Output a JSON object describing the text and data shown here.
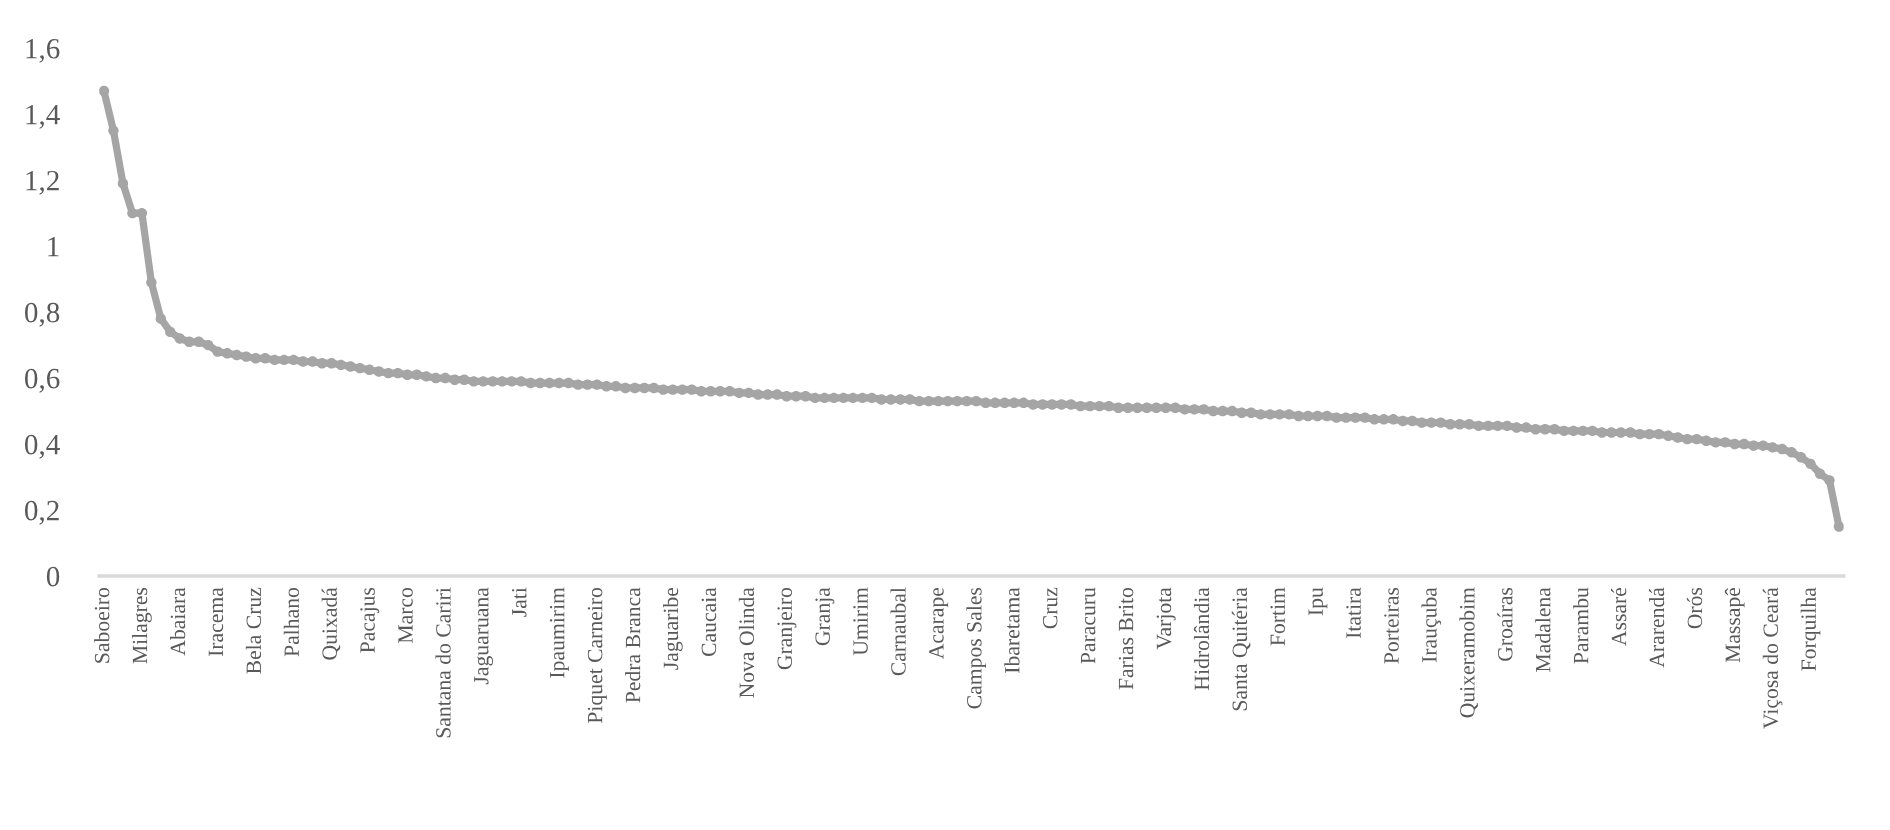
{
  "chart_data": {
    "type": "line",
    "categories": [
      "Saboeiro",
      null,
      null,
      null,
      "Milagres",
      null,
      null,
      null,
      "Abaiara",
      null,
      null,
      null,
      "Iracema",
      null,
      null,
      null,
      "Bela Cruz",
      null,
      null,
      null,
      "Palhano",
      null,
      null,
      null,
      "Quixadá",
      null,
      null,
      null,
      "Pacajus",
      null,
      null,
      null,
      "Marco",
      null,
      null,
      null,
      "Santana do Cariri",
      null,
      null,
      null,
      "Jaguaruana",
      null,
      null,
      null,
      "Jati",
      null,
      null,
      null,
      "Ipaumirim",
      null,
      null,
      null,
      "Piquet Carneiro",
      null,
      null,
      null,
      "Pedra Branca",
      null,
      null,
      null,
      "Jaguaribe",
      null,
      null,
      null,
      "Caucaia",
      null,
      null,
      null,
      "Nova Olinda",
      null,
      null,
      null,
      "Granjeiro",
      null,
      null,
      null,
      "Granja",
      null,
      null,
      null,
      "Umirim",
      null,
      null,
      null,
      "Carnaubal",
      null,
      null,
      null,
      "Acarape",
      null,
      null,
      null,
      "Campos Sales",
      null,
      null,
      null,
      "Ibaretama",
      null,
      null,
      null,
      "Cruz",
      null,
      null,
      null,
      "Paracuru",
      null,
      null,
      null,
      "Farias Brito",
      null,
      null,
      null,
      "Varjota",
      null,
      null,
      null,
      "Hidrolândia",
      null,
      null,
      null,
      "Santa Quitéria",
      null,
      null,
      null,
      "Fortim",
      null,
      null,
      null,
      "Ipu",
      null,
      null,
      null,
      "Itatira",
      null,
      null,
      null,
      "Porteiras",
      null,
      null,
      null,
      "Irauçuba",
      null,
      null,
      null,
      "Quixeramobim",
      null,
      null,
      null,
      "Groaíras",
      null,
      null,
      null,
      "Madalena",
      null,
      null,
      null,
      "Parambu",
      null,
      null,
      null,
      "Assaré",
      null,
      null,
      null,
      "Ararendá",
      null,
      null,
      null,
      "Orós",
      null,
      null,
      null,
      "Massapê",
      null,
      null,
      null,
      "Viçosa do Ceará",
      null,
      null,
      null,
      "Forquilha",
      null,
      null,
      null
    ],
    "series": [
      {
        "color": "#a5a5a5",
        "values": [
          1.47,
          1.35,
          1.19,
          1.1,
          1.1,
          0.89,
          0.78,
          0.74,
          0.72,
          0.71,
          0.71,
          0.7,
          0.68,
          0.675,
          0.67,
          0.665,
          0.66,
          0.66,
          0.655,
          0.655,
          0.655,
          0.65,
          0.65,
          0.645,
          0.645,
          0.64,
          0.635,
          0.63,
          0.625,
          0.62,
          0.615,
          0.615,
          0.61,
          0.61,
          0.605,
          0.6,
          0.6,
          0.595,
          0.595,
          0.59,
          0.59,
          0.59,
          0.59,
          0.59,
          0.59,
          0.585,
          0.585,
          0.585,
          0.585,
          0.585,
          0.58,
          0.58,
          0.58,
          0.575,
          0.575,
          0.57,
          0.57,
          0.57,
          0.57,
          0.565,
          0.565,
          0.565,
          0.565,
          0.56,
          0.56,
          0.56,
          0.56,
          0.555,
          0.555,
          0.55,
          0.55,
          0.55,
          0.545,
          0.545,
          0.545,
          0.54,
          0.54,
          0.54,
          0.54,
          0.54,
          0.54,
          0.54,
          0.535,
          0.535,
          0.535,
          0.535,
          0.53,
          0.53,
          0.53,
          0.53,
          0.53,
          0.53,
          0.53,
          0.525,
          0.525,
          0.525,
          0.525,
          0.525,
          0.52,
          0.52,
          0.52,
          0.52,
          0.52,
          0.515,
          0.515,
          0.515,
          0.515,
          0.51,
          0.51,
          0.51,
          0.51,
          0.51,
          0.51,
          0.51,
          0.505,
          0.505,
          0.505,
          0.5,
          0.5,
          0.5,
          0.495,
          0.495,
          0.49,
          0.49,
          0.49,
          0.49,
          0.485,
          0.485,
          0.485,
          0.485,
          0.48,
          0.48,
          0.48,
          0.48,
          0.475,
          0.475,
          0.475,
          0.47,
          0.47,
          0.465,
          0.465,
          0.465,
          0.46,
          0.46,
          0.46,
          0.455,
          0.455,
          0.455,
          0.455,
          0.45,
          0.45,
          0.445,
          0.445,
          0.445,
          0.44,
          0.44,
          0.44,
          0.44,
          0.435,
          0.435,
          0.435,
          0.435,
          0.43,
          0.43,
          0.43,
          0.425,
          0.42,
          0.415,
          0.415,
          0.41,
          0.405,
          0.405,
          0.4,
          0.4,
          0.395,
          0.395,
          0.39,
          0.385,
          0.375,
          0.36,
          0.34,
          0.31,
          0.29,
          0.15
        ]
      }
    ],
    "ylim": [
      0,
      1.6
    ],
    "yticks": [
      0,
      {
        "value": 0.2,
        "label": "0,2"
      },
      {
        "value": 0.4,
        "label": "0,4"
      },
      {
        "value": 0.6,
        "label": "0,6"
      },
      {
        "value": 0.8,
        "label": "0,8"
      },
      1,
      {
        "value": 1.2,
        "label": "1,2"
      },
      {
        "value": 1.4,
        "label": "1,4"
      },
      {
        "value": 1.6,
        "label": "1,6"
      }
    ],
    "grid": false,
    "legend": false,
    "marker": "circle",
    "line_style": "solid"
  }
}
